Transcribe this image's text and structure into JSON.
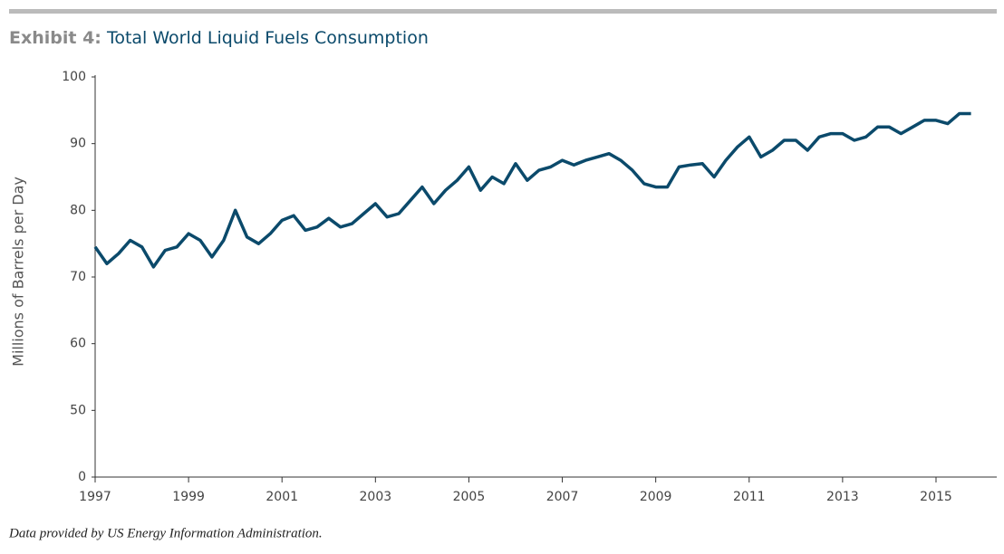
{
  "chart_data": {
    "type": "line",
    "title_label": "Exhibit 4:",
    "title": "Total World Liquid Fuels Consumption",
    "y_label": "Millions of Barrels per Day",
    "source": "Data provided by US Energy Information Administration.",
    "color": "#0b4a6b",
    "x": [
      1997,
      1997.25,
      1997.5,
      1997.75,
      1998,
      1998.25,
      1998.5,
      1998.75,
      1999,
      1999.25,
      1999.5,
      1999.75,
      2000,
      2000.25,
      2000.5,
      2000.75,
      2001,
      2001.25,
      2001.5,
      2001.75,
      2002,
      2002.25,
      2002.5,
      2002.75,
      2003,
      2003.25,
      2003.5,
      2003.75,
      2004,
      2004.25,
      2004.5,
      2004.75,
      2005,
      2005.25,
      2005.5,
      2005.75,
      2006,
      2006.25,
      2006.5,
      2006.75,
      2007,
      2007.25,
      2007.5,
      2007.75,
      2008,
      2008.25,
      2008.5,
      2008.75,
      2009,
      2009.25,
      2009.5,
      2009.75,
      2010,
      2010.25,
      2010.5,
      2010.75,
      2011,
      2011.25,
      2011.5,
      2011.75,
      2012,
      2012.25,
      2012.5,
      2012.75,
      2013,
      2013.25,
      2013.5,
      2013.75,
      2014,
      2014.25,
      2014.5,
      2014.75,
      2015,
      2015.25,
      2015.5,
      2015.75
    ],
    "values": [
      74.5,
      72,
      73.5,
      75.5,
      74.5,
      71.5,
      74,
      74.5,
      76.5,
      75.5,
      73,
      75.5,
      80,
      76,
      75,
      76.5,
      78.5,
      79.2,
      77,
      77.5,
      78.8,
      77.5,
      78,
      79.5,
      81,
      79,
      79.5,
      81.5,
      83.5,
      81,
      83,
      84.5,
      86.5,
      83,
      85,
      84,
      87,
      84.5,
      86,
      86.5,
      87.5,
      86.8,
      87.5,
      88,
      88.5,
      87.5,
      86,
      84,
      83.5,
      83.5,
      86.5,
      86.8,
      87,
      85,
      87.5,
      89.5,
      91,
      88,
      89,
      90.5,
      90.5,
      89,
      91,
      91.5,
      91.5,
      90.5,
      91,
      92.5,
      92.5,
      91.5,
      92.5,
      93.5,
      93.5,
      93,
      94.5,
      94.5
    ],
    "xlim": [
      1997,
      2016.3
    ],
    "xticks": [
      1997,
      1999,
      2001,
      2003,
      2005,
      2007,
      2009,
      2011,
      2013,
      2015
    ],
    "ylim": [
      0,
      100
    ],
    "yticks": [
      0,
      50,
      60,
      70,
      80,
      90,
      100
    ],
    "axis_break": true,
    "grid": false
  }
}
